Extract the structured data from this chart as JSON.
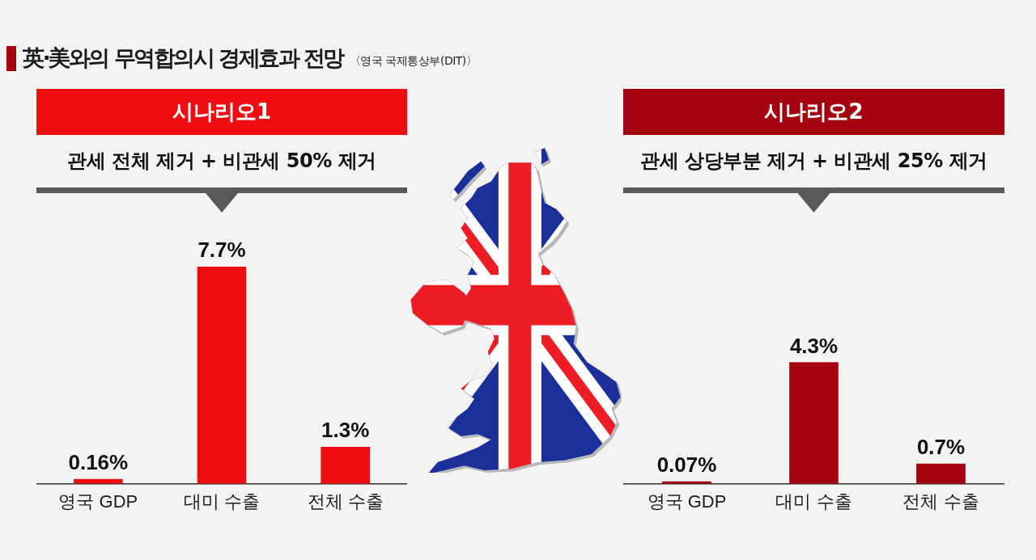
{
  "chart_data": [
    {
      "type": "other",
      "title": "英·美와의 무역합의시 경제효과 전망",
      "annotations": [
        "〈영국 국제통상부(DIT)〉"
      ]
    },
    {
      "type": "bar",
      "title": "시나리오1",
      "subtitle": "관세 전체 제거 + 비관세 50% 제거",
      "categories": [
        "영국 GDP",
        "대미 수출",
        "전체 수출"
      ],
      "values": [
        0.16,
        7.7,
        1.3
      ],
      "value_labels": [
        "0.16%",
        "7.7%",
        "1.3%"
      ],
      "color": "#f00d12"
    },
    {
      "type": "bar",
      "title": "시나리오2",
      "subtitle": "관세 상당부분 제거 + 비관세 25% 제거",
      "categories": [
        "영국 GDP",
        "대미 수출",
        "전체 수출"
      ],
      "values": [
        0.07,
        4.3,
        0.7
      ],
      "value_labels": [
        "0.07%",
        "4.3%",
        "0.7%"
      ],
      "color": "#a5000f"
    }
  ]
}
